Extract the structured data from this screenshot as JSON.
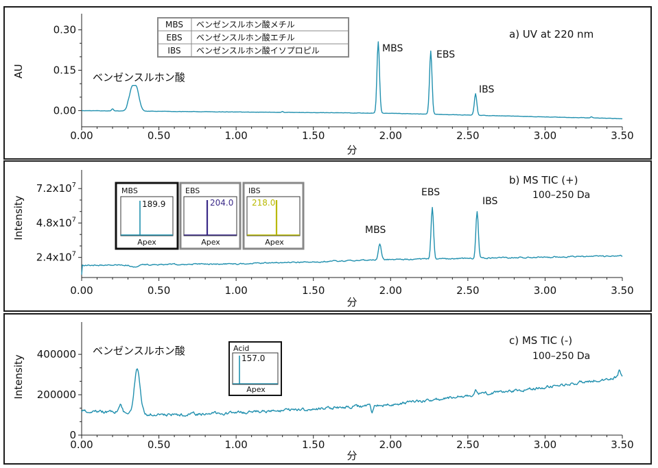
{
  "colors": {
    "trace": "#1f8fae",
    "insets": [
      "#1f8fae",
      "#3b2a88",
      "#b9b900"
    ],
    "acid_inset": "#1f8fae"
  },
  "xaxis": {
    "label": "分",
    "range": [
      0,
      3.5
    ],
    "ticks": [
      "0.00",
      "0.50",
      "1.00",
      "1.50",
      "2.00",
      "2.50",
      "3.00",
      "3.50"
    ]
  },
  "legend": [
    {
      "abbr": "MBS",
      "name": "ベンゼンスルホン酸メチル"
    },
    {
      "abbr": "EBS",
      "name": "ベンゼンスルホン酸エチル"
    },
    {
      "abbr": "IBS",
      "name": "ベンゼンスルホン酸イソプロピル"
    }
  ],
  "inset_footer": "Apex",
  "chart_data": [
    {
      "type": "line",
      "panel": "a",
      "title": "a)  UV at 220 nm",
      "xlabel": "分",
      "ylabel": "AU",
      "ylim": [
        -0.06,
        0.36
      ],
      "yticks": [
        "0.00",
        "0.15",
        "0.30"
      ],
      "annotations": [
        "ベンゼンスルホン酸",
        "MBS",
        "EBS",
        "IBS"
      ],
      "series": [
        {
          "baseline": [
            [
              0,
              0.0
            ],
            [
              2.0,
              -0.01
            ],
            [
              3.5,
              -0.03
            ]
          ],
          "noise": 0.0005,
          "spikes": [
            [
              0.2,
              0.008
            ],
            [
              0.3,
              0.006
            ],
            [
              1.3,
              0.003
            ],
            [
              3.3,
              0.004
            ]
          ],
          "peaks": [
            {
              "rt": 0.34,
              "height": 0.095,
              "width": 0.02,
              "flat": 0.02
            },
            {
              "rt": 1.92,
              "height": 0.265,
              "width": 0.008
            },
            {
              "rt": 2.26,
              "height": 0.235,
              "width": 0.008
            },
            {
              "rt": 2.55,
              "height": 0.08,
              "width": 0.008
            }
          ]
        }
      ]
    },
    {
      "type": "line",
      "panel": "b",
      "title": "b)  MS TIC (+)",
      "subtitle": "100–250 Da",
      "xlabel": "分",
      "ylabel": "Intensity",
      "ylim": [
        10000000,
        85000000
      ],
      "yticks": [
        {
          "mantissa": "2.4x10",
          "exp": "7"
        },
        {
          "mantissa": "4.8x10",
          "exp": "7"
        },
        {
          "mantissa": "7.2x10",
          "exp": "7"
        }
      ],
      "annotations": [
        "MBS",
        "EBS",
        "IBS"
      ],
      "series": [
        {
          "baseline": [
            [
              0,
              18500000
            ],
            [
              1.0,
              19500000
            ],
            [
              2.0,
              22500000
            ],
            [
              3.5,
              25000000
            ]
          ],
          "noise": 350000,
          "start_dip": 12000000,
          "peaks": [
            {
              "rt": 0.34,
              "height": -1500000,
              "width": 0.02
            },
            {
              "rt": 1.93,
              "height": 11000000,
              "width": 0.009
            },
            {
              "rt": 2.27,
              "height": 36000000,
              "width": 0.008
            },
            {
              "rt": 2.56,
              "height": 33000000,
              "width": 0.008
            }
          ]
        }
      ],
      "insets": [
        {
          "label": "MBS",
          "value": "189.9"
        },
        {
          "label": "EBS",
          "value": "204.0"
        },
        {
          "label": "IBS",
          "value": "218.0"
        }
      ]
    },
    {
      "type": "line",
      "panel": "c",
      "title": "c)  MS TIC (-)",
      "subtitle": "100–250 Da",
      "xlabel": "分",
      "ylabel": "Intensity",
      "ylim": [
        0,
        560000
      ],
      "yticks": [
        "0",
        "200000",
        "400000"
      ],
      "annotations": [
        "ベンゼンスルホン酸"
      ],
      "series": [
        {
          "baseline": [
            [
              0,
              120000
            ],
            [
              0.55,
              100000
            ],
            [
              1.0,
              110000
            ],
            [
              2.0,
              150000
            ],
            [
              2.6,
              205000
            ],
            [
              3.0,
              235000
            ],
            [
              3.5,
              290000
            ]
          ],
          "noise": 6000,
          "spikes": [
            [
              0.48,
              -15000
            ],
            [
              1.88,
              -30000
            ],
            [
              2.55,
              20000
            ],
            [
              3.48,
              30000
            ]
          ],
          "peaks": [
            {
              "rt": 0.25,
              "height": 45000,
              "width": 0.012
            },
            {
              "rt": 0.36,
              "height": 230000,
              "width": 0.018
            }
          ]
        }
      ],
      "insets": [
        {
          "label": "Acid",
          "value": "157.0"
        }
      ]
    }
  ]
}
